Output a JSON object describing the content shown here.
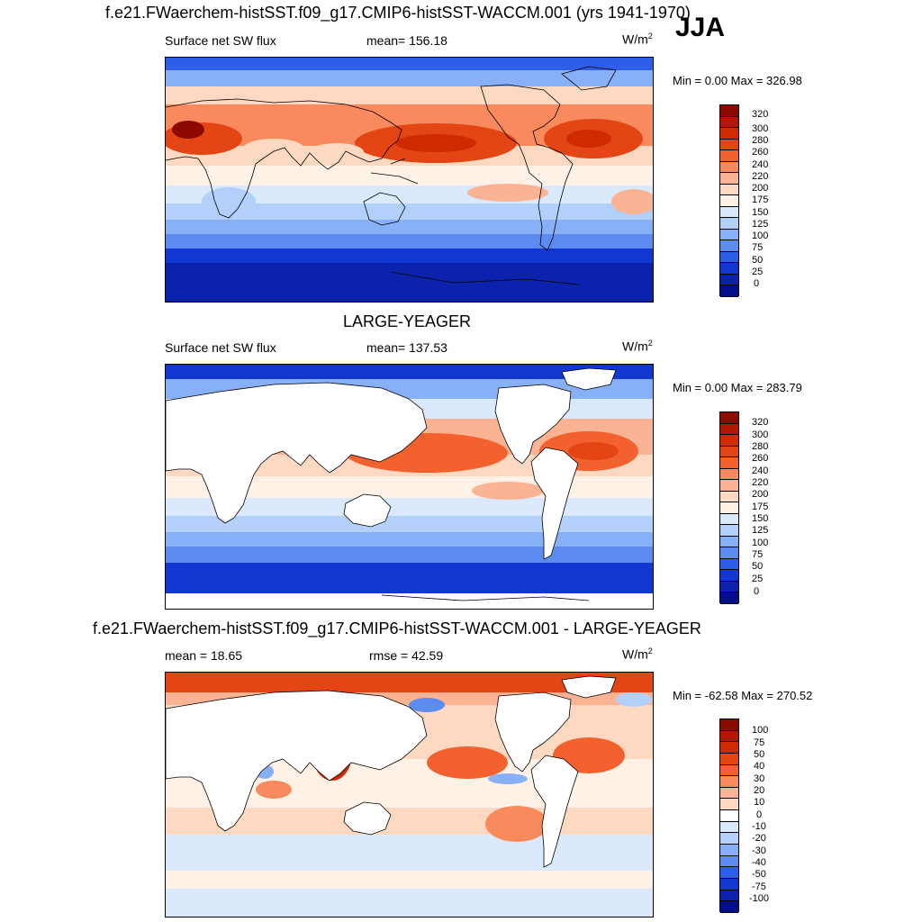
{
  "season": "JJA",
  "panels": [
    {
      "title": "f.e21.FWaerchem-histSST.f09_g17.CMIP6-histSST-WACCM.001 (yrs 1941-1970)",
      "left_label": "Surface net SW flux",
      "mid_label": "mean= 156.18",
      "units": "W/m",
      "units_sup": "2",
      "min_max": "Min =   0.00 Max = 326.98"
    },
    {
      "title": "LARGE-YEAGER",
      "left_label": "Surface net SW flux",
      "mid_label": "mean= 137.53",
      "units": "W/m",
      "units_sup": "2",
      "min_max": "Min =   0.00 Max = 283.79"
    },
    {
      "title": "f.e21.FWaerchem-histSST.f09_g17.CMIP6-histSST-WACCM.001 - LARGE-YEAGER",
      "left_label": "mean =  18.65",
      "mid_label": "rmse =  42.59",
      "units": "W/m",
      "units_sup": "2",
      "min_max": "Min = -62.58 Max = 270.52"
    }
  ],
  "labelbars": {
    "flux": {
      "levels": [
        "320",
        "300",
        "280",
        "260",
        "240",
        "220",
        "200",
        "175",
        "150",
        "125",
        "100",
        "75",
        "50",
        "25",
        "0"
      ],
      "colors": [
        "#8c0a00",
        "#b01800",
        "#cf2a00",
        "#e44515",
        "#f3622e",
        "#f98a5e",
        "#fbb393",
        "#fdd9c2",
        "#fff1e5",
        "#dbe9fd",
        "#b3d0fb",
        "#88b0f6",
        "#5d8cf0",
        "#2d5ee8",
        "#1238d4",
        "#0b22ad",
        "#030f86"
      ]
    },
    "diff": {
      "levels": [
        "100",
        "75",
        "50",
        "40",
        "30",
        "20",
        "10",
        "0",
        "-10",
        "-20",
        "-30",
        "-40",
        "-50",
        "-75",
        "-100"
      ],
      "colors": [
        "#8c0a00",
        "#b01800",
        "#cf2a00",
        "#e44515",
        "#f3622e",
        "#f98a5e",
        "#fbb393",
        "#fdd9c2",
        "#ffffff",
        "#dbe9fd",
        "#b3d0fb",
        "#88b0f6",
        "#5d8cf0",
        "#2d5ee8",
        "#1238d4",
        "#0b22ad",
        "#030f86"
      ]
    }
  }
}
